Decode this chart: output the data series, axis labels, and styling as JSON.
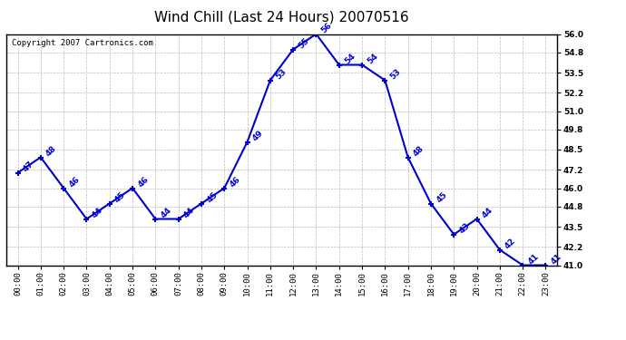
{
  "title": "Wind Chill (Last 24 Hours) 20070516",
  "copyright": "Copyright 2007 Cartronics.com",
  "hours": [
    "00:00",
    "01:00",
    "02:00",
    "03:00",
    "04:00",
    "05:00",
    "06:00",
    "07:00",
    "08:00",
    "09:00",
    "10:00",
    "11:00",
    "12:00",
    "13:00",
    "14:00",
    "15:00",
    "16:00",
    "17:00",
    "18:00",
    "19:00",
    "20:00",
    "21:00",
    "22:00",
    "23:00"
  ],
  "values": [
    47,
    48,
    46,
    44,
    45,
    46,
    44,
    44,
    45,
    46,
    49,
    53,
    55,
    56,
    54,
    54,
    53,
    48,
    45,
    43,
    44,
    42,
    41,
    41
  ],
  "ylim_min": 41.0,
  "ylim_max": 56.0,
  "yticks": [
    41.0,
    42.2,
    43.5,
    44.8,
    46.0,
    47.2,
    48.5,
    49.8,
    51.0,
    52.2,
    53.5,
    54.8,
    56.0
  ],
  "line_color": "#0000CC",
  "marker_color": "#0000CC",
  "bg_color": "#FFFFFF",
  "grid_color": "#AAAAAA",
  "title_fontsize": 11,
  "label_fontsize": 6.5,
  "annotation_fontsize": 6.5,
  "copyright_fontsize": 6.5
}
